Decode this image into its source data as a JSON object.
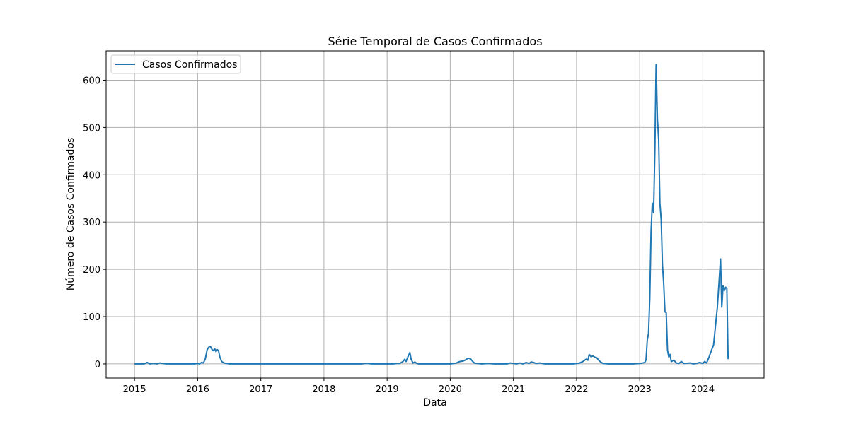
{
  "chart_data": {
    "type": "line",
    "title": "Série Temporal de Casos Confirmados",
    "xlabel": "Data",
    "ylabel": "Número de Casos Confirmados",
    "xlim": [
      2014.55,
      2024.97
    ],
    "ylim": [
      -30,
      662
    ],
    "x_ticks": [
      2015,
      2016,
      2017,
      2018,
      2019,
      2020,
      2021,
      2022,
      2023,
      2024
    ],
    "x_tick_labels": [
      "2015",
      "2016",
      "2017",
      "2018",
      "2019",
      "2020",
      "2021",
      "2022",
      "2023",
      "2024"
    ],
    "y_ticks": [
      0,
      100,
      200,
      300,
      400,
      500,
      600
    ],
    "y_tick_labels": [
      "0",
      "100",
      "200",
      "300",
      "400",
      "500",
      "600"
    ],
    "grid": true,
    "legend": "top-left",
    "colors": {
      "line": "#1f77b4",
      "grid": "#b0b0b0",
      "axes": "#000000"
    },
    "series": [
      {
        "name": "Casos Confirmados",
        "points": [
          [
            2015.0,
            0
          ],
          [
            2015.15,
            0
          ],
          [
            2015.2,
            3
          ],
          [
            2015.24,
            0
          ],
          [
            2015.3,
            1
          ],
          [
            2015.36,
            0
          ],
          [
            2015.4,
            2
          ],
          [
            2015.45,
            1
          ],
          [
            2015.5,
            0
          ],
          [
            2015.7,
            0
          ],
          [
            2015.95,
            0
          ],
          [
            2016.0,
            1
          ],
          [
            2016.03,
            0
          ],
          [
            2016.06,
            3
          ],
          [
            2016.09,
            2
          ],
          [
            2016.12,
            10
          ],
          [
            2016.15,
            30
          ],
          [
            2016.18,
            36
          ],
          [
            2016.2,
            37
          ],
          [
            2016.23,
            30
          ],
          [
            2016.25,
            28
          ],
          [
            2016.27,
            32
          ],
          [
            2016.29,
            26
          ],
          [
            2016.31,
            30
          ],
          [
            2016.33,
            28
          ],
          [
            2016.35,
            15
          ],
          [
            2016.38,
            5
          ],
          [
            2016.42,
            2
          ],
          [
            2016.5,
            0
          ],
          [
            2017.0,
            0
          ],
          [
            2018.0,
            0
          ],
          [
            2018.6,
            0
          ],
          [
            2018.65,
            1
          ],
          [
            2018.7,
            1
          ],
          [
            2018.75,
            0
          ],
          [
            2019.0,
            0
          ],
          [
            2019.1,
            0
          ],
          [
            2019.15,
            1
          ],
          [
            2019.2,
            1
          ],
          [
            2019.25,
            5
          ],
          [
            2019.28,
            10
          ],
          [
            2019.3,
            5
          ],
          [
            2019.33,
            15
          ],
          [
            2019.36,
            24
          ],
          [
            2019.38,
            10
          ],
          [
            2019.41,
            2
          ],
          [
            2019.44,
            4
          ],
          [
            2019.47,
            1
          ],
          [
            2019.5,
            0
          ],
          [
            2019.8,
            0
          ],
          [
            2020.0,
            0
          ],
          [
            2020.1,
            2
          ],
          [
            2020.15,
            5
          ],
          [
            2020.2,
            6
          ],
          [
            2020.25,
            9
          ],
          [
            2020.28,
            12
          ],
          [
            2020.32,
            11
          ],
          [
            2020.35,
            6
          ],
          [
            2020.38,
            2
          ],
          [
            2020.42,
            1
          ],
          [
            2020.5,
            0
          ],
          [
            2020.6,
            1
          ],
          [
            2020.7,
            0
          ],
          [
            2020.9,
            0
          ],
          [
            2020.95,
            2
          ],
          [
            2021.0,
            1
          ],
          [
            2021.05,
            0
          ],
          [
            2021.1,
            2
          ],
          [
            2021.15,
            0
          ],
          [
            2021.2,
            3
          ],
          [
            2021.25,
            1
          ],
          [
            2021.28,
            4
          ],
          [
            2021.32,
            3
          ],
          [
            2021.36,
            1
          ],
          [
            2021.42,
            2
          ],
          [
            2021.5,
            0
          ],
          [
            2021.95,
            0
          ],
          [
            2022.05,
            2
          ],
          [
            2022.1,
            5
          ],
          [
            2022.15,
            10
          ],
          [
            2022.18,
            8
          ],
          [
            2022.2,
            20
          ],
          [
            2022.23,
            15
          ],
          [
            2022.26,
            17
          ],
          [
            2022.29,
            14
          ],
          [
            2022.32,
            13
          ],
          [
            2022.35,
            8
          ],
          [
            2022.38,
            4
          ],
          [
            2022.42,
            1
          ],
          [
            2022.5,
            0
          ],
          [
            2022.9,
            0
          ],
          [
            2023.0,
            1
          ],
          [
            2023.05,
            2
          ],
          [
            2023.08,
            3
          ],
          [
            2023.1,
            8
          ],
          [
            2023.12,
            50
          ],
          [
            2023.14,
            65
          ],
          [
            2023.16,
            140
          ],
          [
            2023.18,
            280
          ],
          [
            2023.2,
            340
          ],
          [
            2023.22,
            320
          ],
          [
            2023.24,
            450
          ],
          [
            2023.26,
            633
          ],
          [
            2023.28,
            520
          ],
          [
            2023.3,
            475
          ],
          [
            2023.32,
            340
          ],
          [
            2023.34,
            305
          ],
          [
            2023.36,
            210
          ],
          [
            2023.38,
            170
          ],
          [
            2023.4,
            110
          ],
          [
            2023.42,
            108
          ],
          [
            2023.44,
            30
          ],
          [
            2023.46,
            15
          ],
          [
            2023.48,
            20
          ],
          [
            2023.5,
            5
          ],
          [
            2023.54,
            8
          ],
          [
            2023.58,
            2
          ],
          [
            2023.62,
            1
          ],
          [
            2023.66,
            5
          ],
          [
            2023.7,
            1
          ],
          [
            2023.8,
            2
          ],
          [
            2023.85,
            0
          ],
          [
            2023.9,
            1
          ],
          [
            2023.95,
            3
          ],
          [
            2024.0,
            1
          ],
          [
            2024.03,
            5
          ],
          [
            2024.06,
            2
          ],
          [
            2024.1,
            15
          ],
          [
            2024.14,
            30
          ],
          [
            2024.17,
            40
          ],
          [
            2024.2,
            80
          ],
          [
            2024.23,
            120
          ],
          [
            2024.26,
            180
          ],
          [
            2024.28,
            222
          ],
          [
            2024.3,
            120
          ],
          [
            2024.32,
            165
          ],
          [
            2024.34,
            155
          ],
          [
            2024.36,
            162
          ],
          [
            2024.38,
            160
          ],
          [
            2024.4,
            10
          ]
        ]
      }
    ]
  }
}
